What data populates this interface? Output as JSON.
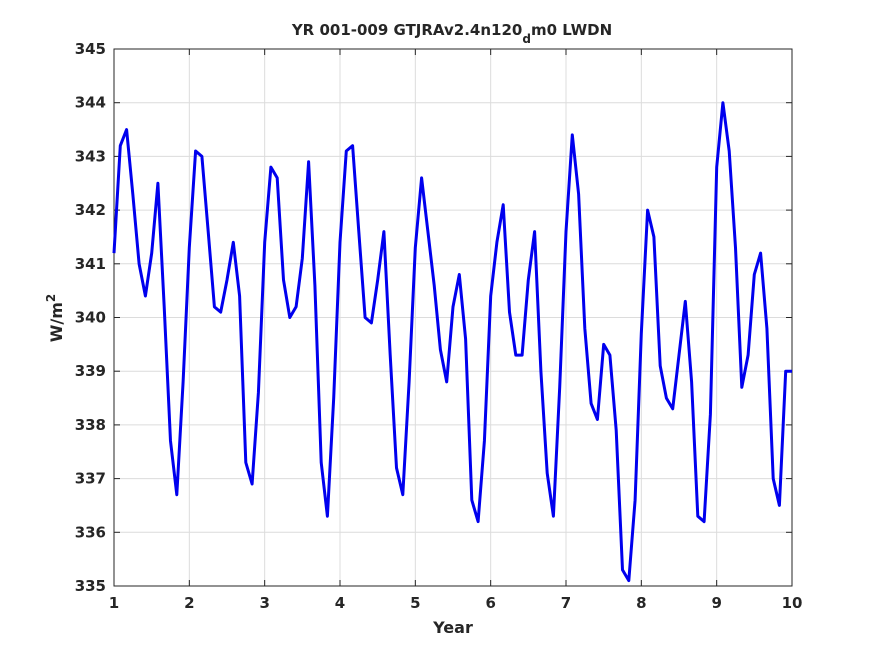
{
  "chart_data": {
    "type": "line",
    "title": "YR 001-009 GTJRAv2.4n120",
    "title_subscript": "d",
    "title_suffix": "m0 LWDN",
    "xlabel": "Year",
    "ylabel": "W/m",
    "ylabel_superscript": "2",
    "xlim": [
      1,
      10
    ],
    "ylim": [
      335,
      345
    ],
    "xticks": [
      "1",
      "2",
      "3",
      "4",
      "5",
      "6",
      "7",
      "8",
      "9",
      "10"
    ],
    "yticks": [
      "335",
      "336",
      "337",
      "338",
      "339",
      "340",
      "341",
      "342",
      "343",
      "344",
      "345"
    ],
    "grid": true,
    "line_color": "#0000ee",
    "series": [
      {
        "x": [
          1.0,
          1.083,
          1.167,
          1.25,
          1.333,
          1.417,
          1.5,
          1.583,
          1.667,
          1.75,
          1.833,
          1.917,
          2.0,
          2.083,
          2.167,
          2.25,
          2.333,
          2.417,
          2.5,
          2.583,
          2.667,
          2.75,
          2.833,
          2.917,
          3.0,
          3.083,
          3.167,
          3.25,
          3.333,
          3.417,
          3.5,
          3.583,
          3.667,
          3.75,
          3.833,
          3.917,
          4.0,
          4.083,
          4.167,
          4.25,
          4.333,
          4.417,
          4.5,
          4.583,
          4.667,
          4.75,
          4.833,
          4.917,
          5.0,
          5.083,
          5.167,
          5.25,
          5.333,
          5.417,
          5.5,
          5.583,
          5.667,
          5.75,
          5.833,
          5.917,
          6.0,
          6.083,
          6.167,
          6.25,
          6.333,
          6.417,
          6.5,
          6.583,
          6.667,
          6.75,
          6.833,
          6.917,
          7.0,
          7.083,
          7.167,
          7.25,
          7.333,
          7.417,
          7.5,
          7.583,
          7.667,
          7.75,
          7.833,
          7.917,
          8.0,
          8.083,
          8.167,
          8.25,
          8.333,
          8.417,
          8.5,
          8.583,
          8.667,
          8.75,
          8.833,
          8.917,
          9.0,
          9.083,
          9.167,
          9.25,
          9.333,
          9.417,
          9.5,
          9.583,
          9.667,
          9.75,
          9.833,
          9.917,
          10.0
        ],
        "y": [
          341.2,
          343.2,
          343.5,
          342.3,
          341.0,
          340.4,
          341.2,
          342.5,
          340.2,
          337.7,
          336.7,
          338.8,
          341.3,
          343.1,
          343.0,
          341.6,
          340.2,
          340.1,
          340.7,
          341.4,
          340.4,
          337.3,
          336.9,
          338.6,
          341.4,
          342.8,
          342.6,
          340.7,
          340.0,
          340.2,
          341.1,
          342.9,
          340.6,
          337.3,
          336.3,
          338.5,
          341.4,
          343.1,
          343.2,
          341.6,
          340.0,
          339.9,
          340.7,
          341.6,
          339.3,
          337.2,
          336.7,
          338.8,
          341.3,
          342.6,
          341.6,
          340.6,
          339.4,
          338.8,
          340.2,
          340.8,
          339.6,
          336.6,
          336.2,
          337.7,
          340.4,
          341.4,
          342.1,
          340.1,
          339.3,
          339.3,
          340.7,
          341.6,
          339.0,
          337.1,
          336.3,
          338.7,
          341.6,
          343.4,
          342.3,
          339.8,
          338.4,
          338.1,
          339.5,
          339.3,
          337.9,
          335.3,
          335.1,
          336.6,
          339.7,
          342.0,
          341.5,
          339.1,
          338.5,
          338.3,
          339.3,
          340.3,
          338.8,
          336.3,
          336.2,
          338.2,
          342.8,
          344.0,
          343.1,
          341.3,
          338.7,
          339.3,
          340.8,
          341.2,
          339.8,
          337.0,
          336.5,
          339.0,
          339.0
        ]
      }
    ]
  }
}
